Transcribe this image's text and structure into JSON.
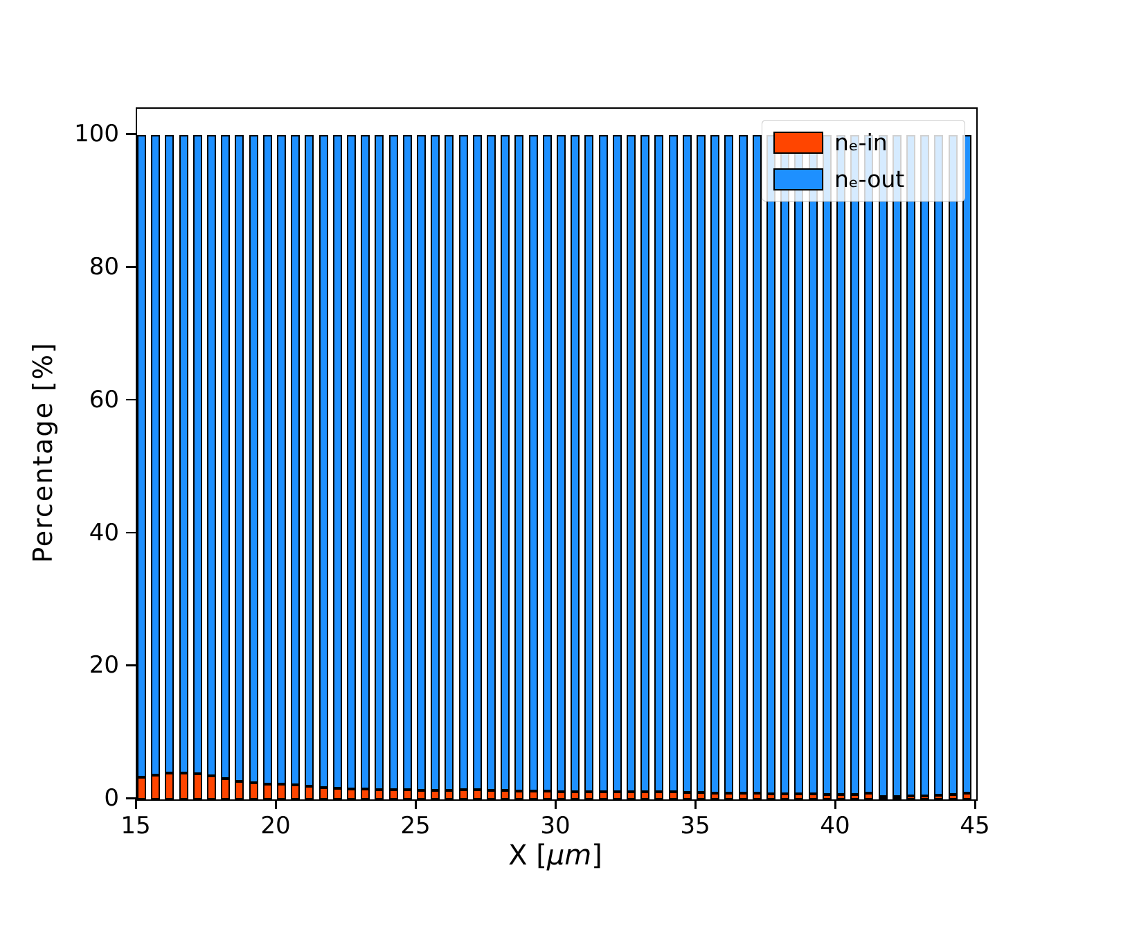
{
  "chart_data": {
    "type": "bar",
    "stacked": true,
    "title": "",
    "xlabel": {
      "prefix": "X  [",
      "unit": "μm",
      "suffix": "]"
    },
    "ylabel": "Percentage  [%]",
    "xlim": [
      15,
      45
    ],
    "ylim": [
      0,
      104
    ],
    "xticks": [
      15,
      20,
      25,
      30,
      35,
      40,
      45
    ],
    "yticks": [
      0,
      20,
      40,
      60,
      80,
      100
    ],
    "bar_width": 0.32,
    "grid": false,
    "legend_position": "upper right",
    "x": [
      15.0,
      15.5,
      16.0,
      16.5,
      17.0,
      17.5,
      18.0,
      18.5,
      19.0,
      19.5,
      20.0,
      20.5,
      21.0,
      21.5,
      22.0,
      22.5,
      23.0,
      23.5,
      24.0,
      24.5,
      25.0,
      25.5,
      26.0,
      26.5,
      27.0,
      27.5,
      28.0,
      28.5,
      29.0,
      29.5,
      30.0,
      30.5,
      31.0,
      31.5,
      32.0,
      32.5,
      33.0,
      33.5,
      34.0,
      34.5,
      35.0,
      35.5,
      36.0,
      36.5,
      37.0,
      37.5,
      38.0,
      38.5,
      39.0,
      39.5,
      40.0,
      40.5,
      41.0,
      41.5,
      42.0,
      42.5,
      43.0,
      43.5,
      44.0,
      44.5
    ],
    "series": [
      {
        "name": "nₑ-in",
        "color": "#ff4500",
        "values": [
          3.3,
          3.7,
          4.0,
          4.0,
          3.9,
          3.6,
          3.1,
          2.7,
          2.5,
          2.3,
          2.3,
          2.2,
          2.0,
          1.8,
          1.7,
          1.6,
          1.6,
          1.5,
          1.5,
          1.5,
          1.4,
          1.4,
          1.4,
          1.5,
          1.5,
          1.4,
          1.4,
          1.3,
          1.3,
          1.3,
          1.2,
          1.2,
          1.2,
          1.2,
          1.2,
          1.2,
          1.1,
          1.1,
          1.1,
          1.0,
          1.0,
          0.9,
          0.9,
          0.9,
          0.9,
          0.8,
          0.8,
          0.8,
          0.8,
          0.7,
          0.7,
          0.7,
          0.9,
          0.4,
          0.4,
          0.5,
          0.5,
          0.6,
          0.7,
          0.9
        ]
      },
      {
        "name": "nₑ-out",
        "color": "#1e90ff",
        "values": [
          96.7,
          96.3,
          96.0,
          96.0,
          96.1,
          96.4,
          96.9,
          97.3,
          97.5,
          97.7,
          97.7,
          97.8,
          98.0,
          98.2,
          98.3,
          98.4,
          98.4,
          98.5,
          98.5,
          98.5,
          98.6,
          98.6,
          98.6,
          98.5,
          98.5,
          98.6,
          98.6,
          98.7,
          98.7,
          98.7,
          98.8,
          98.8,
          98.8,
          98.8,
          98.8,
          98.8,
          98.9,
          98.9,
          98.9,
          99.0,
          99.0,
          99.1,
          99.1,
          99.1,
          99.1,
          99.2,
          99.2,
          99.2,
          99.2,
          99.3,
          99.3,
          99.3,
          99.1,
          99.6,
          99.6,
          99.5,
          99.5,
          99.4,
          99.3,
          99.1
        ]
      }
    ],
    "edge_color": "#000000",
    "background_color": "#ffffff"
  }
}
